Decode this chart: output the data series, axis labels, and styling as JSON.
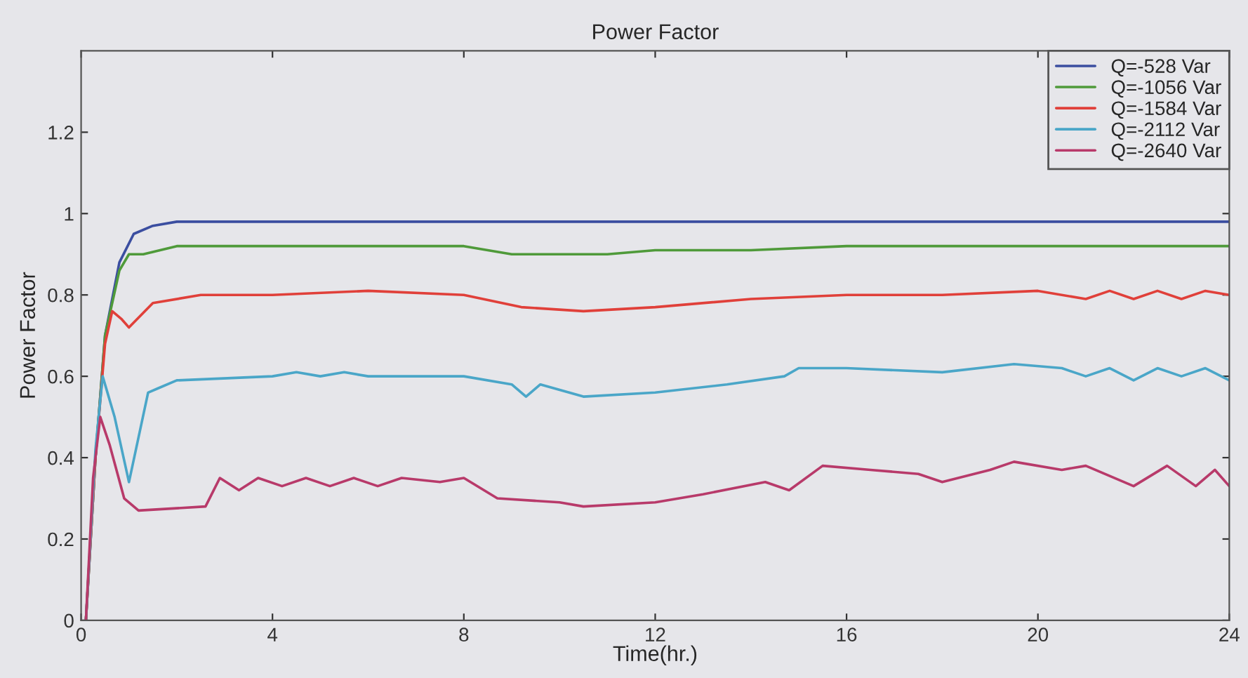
{
  "chart_data": {
    "type": "line",
    "title": "Power Factor",
    "xlabel": "Time(hr.)",
    "ylabel": "Power Factor",
    "xlim": [
      0,
      24
    ],
    "xticks": [
      0,
      4,
      8,
      12,
      16,
      20,
      24
    ],
    "ylim": [
      0,
      1.4
    ],
    "yticks": [
      0,
      0.2,
      0.4,
      0.6,
      0.8,
      1,
      1.2
    ],
    "grid": false,
    "legend": "top right",
    "marker": "none",
    "line_style": "solid",
    "series": [
      {
        "name": "Q=-528 Var",
        "color": "#3b4ea0",
        "x": [
          0.1,
          0.3,
          0.5,
          0.8,
          1.1,
          1.5,
          2,
          8,
          12,
          16,
          20,
          24
        ],
        "values": [
          0,
          0.4,
          0.7,
          0.88,
          0.95,
          0.97,
          0.98,
          0.98,
          0.98,
          0.98,
          0.98,
          0.98
        ]
      },
      {
        "name": "Q=-1056 Var",
        "color": "#4f9a3a",
        "x": [
          0.1,
          0.3,
          0.5,
          0.8,
          1.0,
          1.3,
          2,
          4,
          6,
          8,
          9,
          10,
          11,
          12,
          14,
          16,
          18,
          20,
          21,
          22,
          23,
          24
        ],
        "values": [
          0,
          0.4,
          0.7,
          0.86,
          0.9,
          0.9,
          0.92,
          0.92,
          0.92,
          0.92,
          0.9,
          0.9,
          0.9,
          0.91,
          0.91,
          0.92,
          0.92,
          0.92,
          0.92,
          0.92,
          0.92,
          0.92
        ]
      },
      {
        "name": "Q=-1584 Var",
        "color": "#e0403a",
        "x": [
          0.1,
          0.3,
          0.5,
          0.65,
          0.85,
          1.0,
          1.5,
          2.5,
          4,
          6,
          8,
          9.2,
          10.5,
          12,
          14,
          16,
          18,
          20,
          21,
          21.5,
          22,
          22.5,
          23,
          23.5,
          24
        ],
        "values": [
          0,
          0.4,
          0.68,
          0.76,
          0.74,
          0.72,
          0.78,
          0.8,
          0.8,
          0.81,
          0.8,
          0.77,
          0.76,
          0.77,
          0.79,
          0.8,
          0.8,
          0.81,
          0.79,
          0.81,
          0.79,
          0.81,
          0.79,
          0.81,
          0.8
        ]
      },
      {
        "name": "Q=-2112 Var",
        "color": "#4aa6c8",
        "x": [
          0.1,
          0.3,
          0.45,
          0.7,
          1.0,
          1.4,
          1.6,
          2,
          4,
          4.5,
          5,
          5.5,
          6,
          7,
          8,
          9,
          9.3,
          9.6,
          10.5,
          12,
          13.5,
          14.7,
          15,
          16,
          18,
          19.5,
          20.5,
          21,
          21.5,
          22,
          22.5,
          23,
          23.5,
          24
        ],
        "values": [
          0,
          0.42,
          0.6,
          0.5,
          0.34,
          0.56,
          0.57,
          0.59,
          0.6,
          0.61,
          0.6,
          0.61,
          0.6,
          0.6,
          0.6,
          0.58,
          0.55,
          0.58,
          0.55,
          0.56,
          0.58,
          0.6,
          0.62,
          0.62,
          0.61,
          0.63,
          0.62,
          0.6,
          0.62,
          0.59,
          0.62,
          0.6,
          0.62,
          0.59
        ]
      },
      {
        "name": "Q=-2640 Var",
        "color": "#b83a6a",
        "x": [
          0.1,
          0.25,
          0.4,
          0.6,
          0.9,
          1.2,
          2.6,
          2.9,
          3.3,
          3.7,
          4.2,
          4.7,
          5.2,
          5.7,
          6.2,
          6.7,
          7.5,
          8,
          8.7,
          10,
          10.5,
          12,
          13,
          14.3,
          14.8,
          15.5,
          16.5,
          17.5,
          18,
          19,
          19.5,
          20.5,
          21,
          22,
          22.7,
          23.3,
          23.7,
          24
        ],
        "values": [
          0,
          0.35,
          0.5,
          0.43,
          0.3,
          0.27,
          0.28,
          0.35,
          0.32,
          0.35,
          0.33,
          0.35,
          0.33,
          0.35,
          0.33,
          0.35,
          0.34,
          0.35,
          0.3,
          0.29,
          0.28,
          0.29,
          0.31,
          0.34,
          0.32,
          0.38,
          0.37,
          0.36,
          0.34,
          0.37,
          0.39,
          0.37,
          0.38,
          0.33,
          0.38,
          0.33,
          0.37,
          0.33
        ]
      }
    ]
  }
}
